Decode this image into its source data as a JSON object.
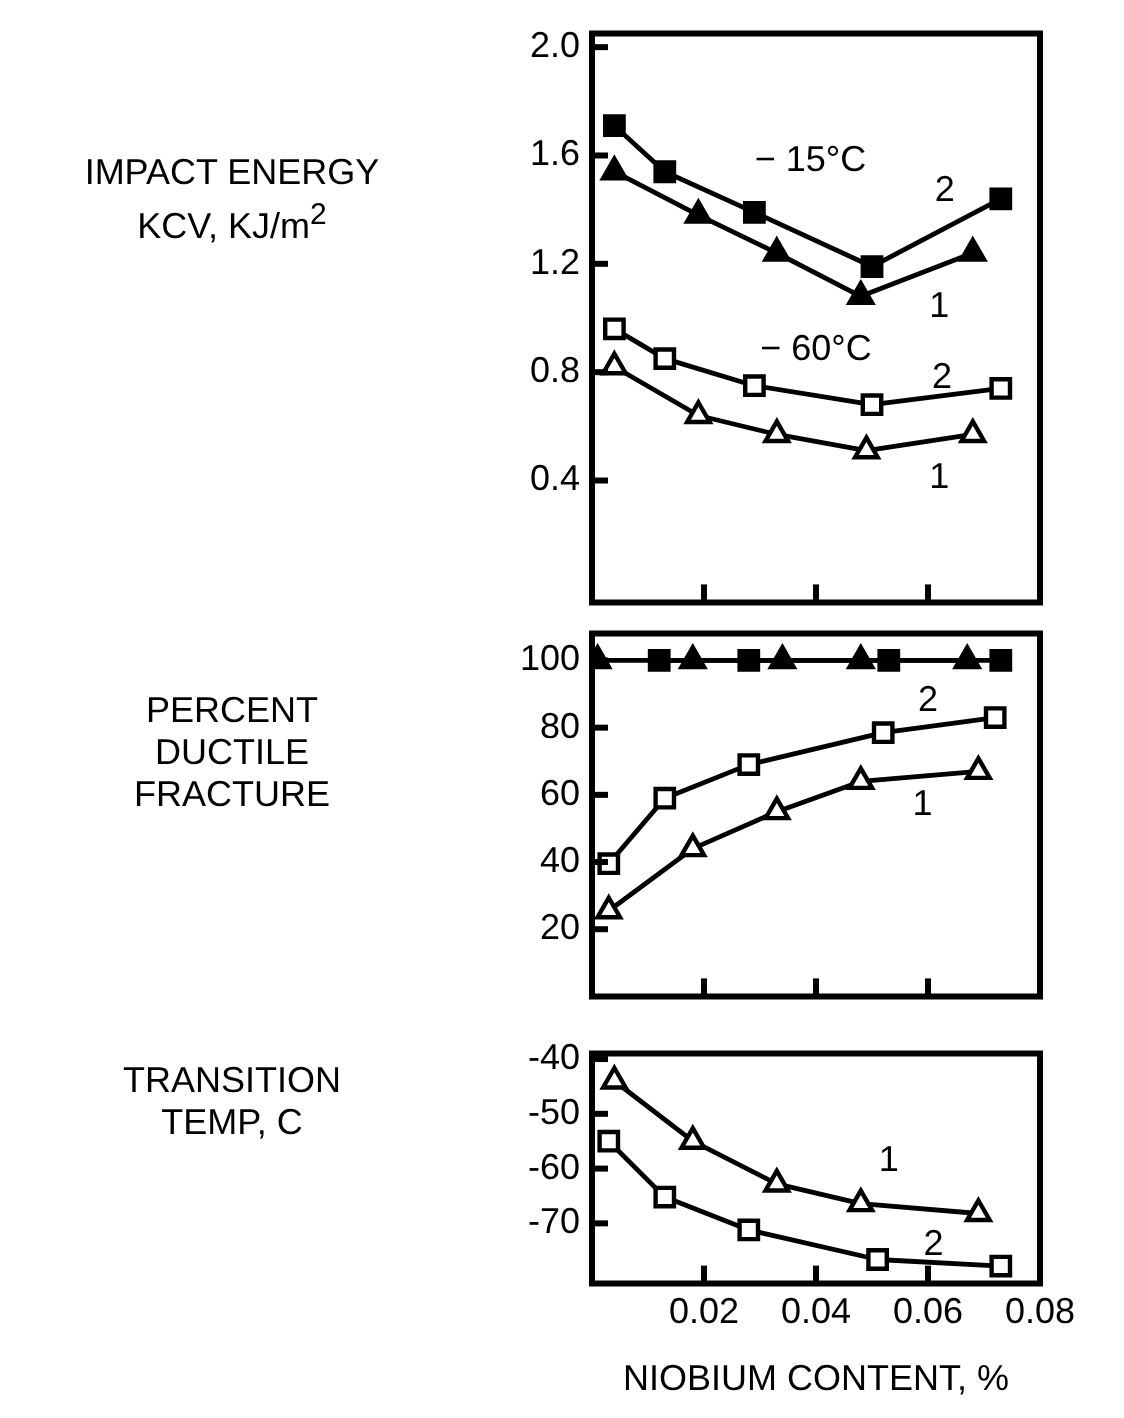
{
  "chart_data": [
    {
      "type": "line",
      "ylabel": "IMPACT ENERGY\nKCV, KJ/m$^{2}$",
      "xlim": [
        0,
        0.08
      ],
      "xticks": [
        0.02,
        0.04,
        0.06,
        0.08
      ],
      "ylim": [
        -0.05,
        2.05
      ],
      "yticks": [
        0.4,
        0.8,
        1.2,
        1.6,
        {
          "value": 2,
          "label": "2.0"
        }
      ],
      "tick_labels": "y",
      "grid": false,
      "legend": false,
      "line_style": "solid",
      "series": [
        {
          "color": "#000000",
          "marker": "square",
          "x": [
            0.004,
            0.013,
            0.029,
            0.05,
            0.073
          ],
          "values": [
            1.71,
            1.54,
            1.39,
            1.19,
            1.44
          ]
        },
        {
          "color": "#000000",
          "marker": "triangle",
          "x": [
            0.004,
            0.019,
            0.033,
            0.048,
            0.068
          ],
          "values": [
            1.54,
            1.38,
            1.24,
            1.08,
            1.24
          ]
        },
        {
          "color": "#ffffff",
          "marker": "square",
          "x": [
            0.004,
            0.013,
            0.029,
            0.05,
            0.073
          ],
          "values": [
            0.96,
            0.85,
            0.75,
            0.68,
            0.74
          ]
        },
        {
          "color": "#ffffff",
          "marker": "triangle",
          "x": [
            0.004,
            0.019,
            0.033,
            0.049,
            0.068
          ],
          "values": [
            0.82,
            0.64,
            0.57,
            0.51,
            0.57
          ]
        }
      ],
      "annotations": [
        "− 15°C",
        "2",
        "1",
        "− 60°C",
        "2",
        "1"
      ]
    },
    {
      "type": "line",
      "ylabel": "PERCENT\nDUCTILE\nFRACTURE",
      "xlim": [
        0,
        0.08
      ],
      "xticks": [
        0.02,
        0.04,
        0.06,
        0.08
      ],
      "ylim": [
        0,
        108
      ],
      "yticks": [
        20,
        40,
        60,
        80,
        100
      ],
      "tick_labels": "y",
      "grid": false,
      "legend": false,
      "line_style": "solid",
      "series": [
        {
          "color": "#000000",
          "marker": "square",
          "x": [
            0.012,
            0.028,
            0.053,
            0.073
          ],
          "values": [
            100,
            100,
            100,
            100
          ]
        },
        {
          "color": "#000000",
          "marker": "triangle",
          "x": [
            0.001,
            0.018,
            0.034,
            0.048,
            0.067
          ],
          "values": [
            100,
            100,
            100,
            100,
            100
          ]
        },
        {
          "color": "#ffffff",
          "marker": "square",
          "x": [
            0.003,
            0.013,
            0.028,
            0.052,
            0.072
          ],
          "values": [
            39.5,
            59,
            69,
            78.5,
            83
          ]
        },
        {
          "color": "#ffffff",
          "marker": "triangle",
          "x": [
            0.003,
            0.018,
            0.033,
            0.048,
            0.069
          ],
          "values": [
            25.5,
            44,
            55,
            64,
            67
          ]
        }
      ],
      "annotations": [
        "2",
        "1"
      ]
    },
    {
      "type": "line",
      "ylabel": "TRANSITION\nTEMP, C",
      "xlabel": "NIOBIUM CONTENT, %",
      "xlim": [
        0,
        0.08
      ],
      "xticks": [
        0.02,
        0.04,
        0.06,
        0.08
      ],
      "ylim": [
        -81,
        -39
      ],
      "yticks": [
        -40,
        -50,
        -60,
        -70
      ],
      "grid": false,
      "legend": false,
      "line_style": "solid",
      "series": [
        {
          "color": "#ffffff",
          "marker": "triangle",
          "x": [
            0.004,
            0.018,
            0.033,
            0.048,
            0.069
          ],
          "values": [
            -44,
            -55,
            -62.8,
            -66.4,
            -68.2
          ]
        },
        {
          "color": "#ffffff",
          "marker": "square",
          "x": [
            0.003,
            0.013,
            0.028,
            0.051,
            0.073
          ],
          "values": [
            -55,
            -65.2,
            -71.2,
            -76.6,
            -77.8
          ]
        }
      ],
      "annotations": [
        "1",
        "2"
      ]
    }
  ]
}
